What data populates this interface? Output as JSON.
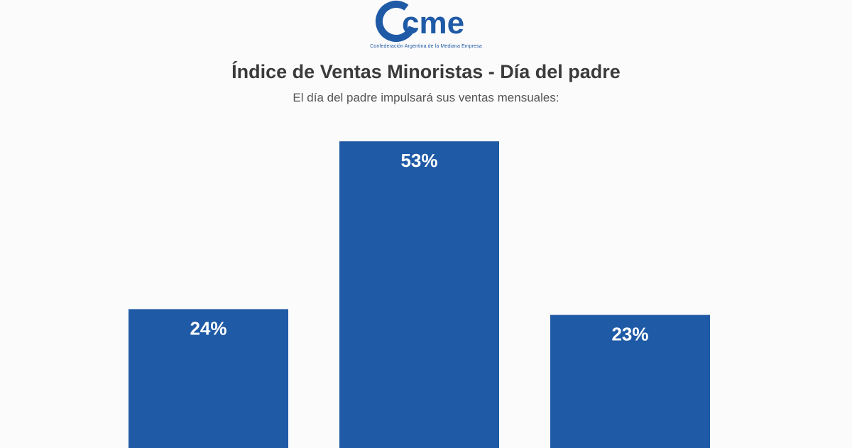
{
  "logo": {
    "text": "cme",
    "tagline": "Confederación Argentina de la Mediana Empresa",
    "brand_color": "#1f5aa6"
  },
  "chart_data": {
    "type": "bar",
    "title": "Índice de Ventas Minoristas - Día del padre",
    "subtitle": "El día del padre impulsará sus ventas mensuales:",
    "categories": [
      "",
      "",
      ""
    ],
    "values": [
      24,
      53,
      23
    ],
    "value_labels": [
      "24%",
      "53%",
      "23%"
    ],
    "ylim": [
      0,
      100
    ],
    "bar_color": "#1f5aa6",
    "grid": false,
    "legend": "none"
  }
}
